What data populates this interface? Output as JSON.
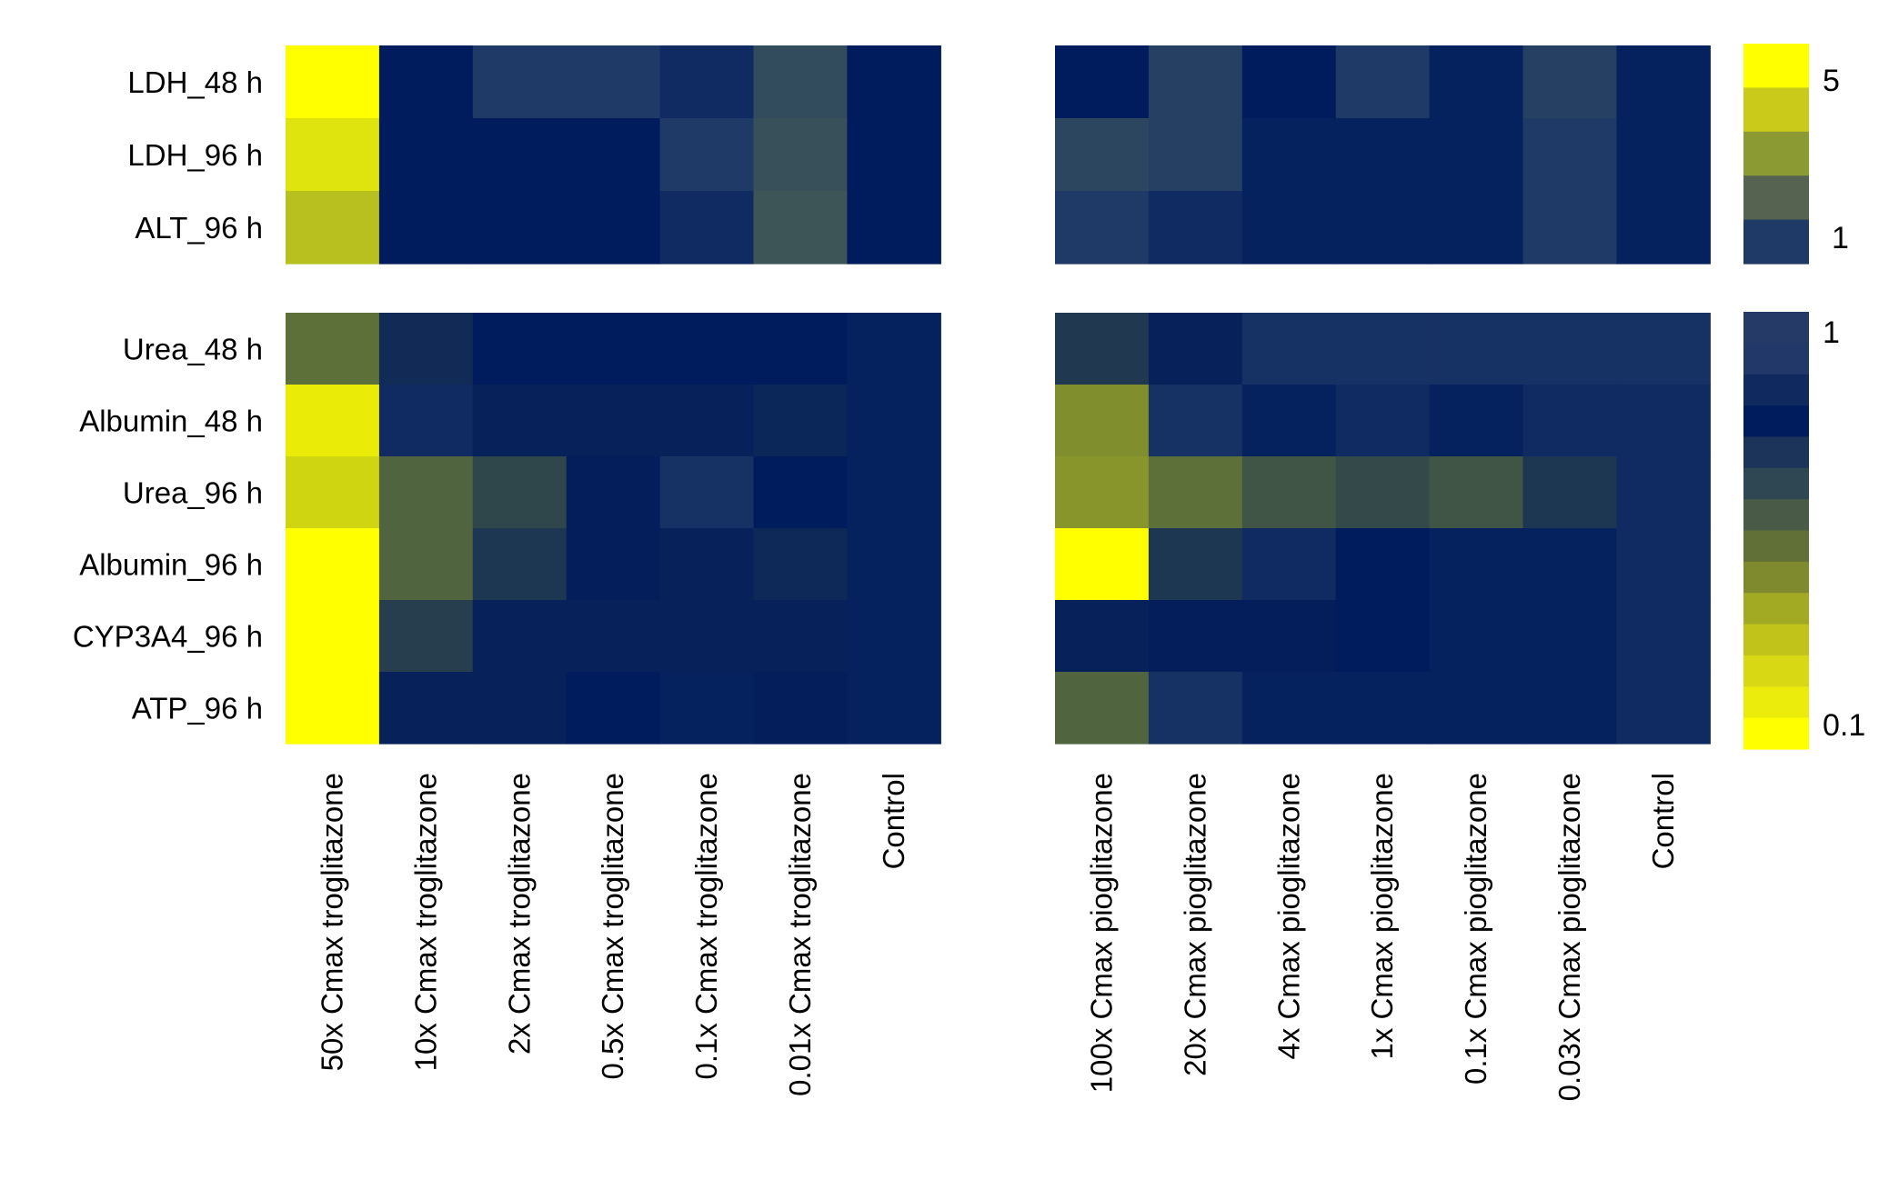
{
  "chart_data": {
    "type": "heatmap",
    "color_scale": {
      "low_color": "#ffff00",
      "mid_color": "#1f3a66",
      "high_color": "#001c5c"
    },
    "row_groups": [
      {
        "rows": [
          "LDH_48 h",
          "LDH_96 h",
          "ALT_96 h"
        ]
      },
      {
        "rows": [
          "Urea_48 h",
          "Albumin_48 h",
          "Urea_96 h",
          "Albumin_96 h",
          "CYP3A4_96 h",
          "ATP_96 h"
        ]
      }
    ],
    "col_groups": [
      {
        "columns": [
          "50x Cmax troglitazone",
          "10x Cmax troglitazone",
          "2x Cmax troglitazone",
          "0.5x Cmax troglitazone",
          "0.1x Cmax troglitazone",
          "0.01x Cmax troglitazone",
          "Control"
        ]
      },
      {
        "columns": [
          "100x Cmax pioglitazone",
          "20x Cmax pioglitazone",
          "4x Cmax pioglitazone",
          "1x Cmax pioglitazone",
          "0.1x Cmax pioglitazone",
          "0.03x Cmax pioglitazone",
          "Control"
        ]
      }
    ],
    "panels": [
      {
        "row_group": 0,
        "col_group": 0,
        "color_scale": "top",
        "values": [
          [
            5.5,
            0.9,
            1.0,
            1.0,
            0.95,
            1.15,
            0.9
          ],
          [
            4.0,
            0.9,
            0.9,
            0.9,
            1.0,
            1.2,
            0.9
          ],
          [
            3.0,
            0.9,
            0.9,
            0.9,
            0.95,
            1.25,
            0.9
          ]
        ]
      },
      {
        "row_group": 0,
        "col_group": 1,
        "color_scale": "top",
        "values": [
          [
            0.9,
            1.05,
            0.9,
            1.0,
            0.92,
            1.05,
            0.92
          ],
          [
            1.1,
            1.05,
            0.92,
            0.92,
            0.92,
            1.0,
            0.92
          ],
          [
            1.0,
            0.95,
            0.92,
            0.92,
            0.92,
            1.0,
            0.92
          ]
        ]
      },
      {
        "row_group": 1,
        "col_group": 0,
        "color_scale": "bottom",
        "values": [
          [
            0.4,
            0.78,
            0.9,
            0.9,
            0.9,
            0.9,
            0.92
          ],
          [
            0.12,
            0.95,
            0.85,
            0.85,
            0.85,
            0.82,
            0.92
          ],
          [
            0.15,
            0.45,
            0.6,
            0.88,
            0.97,
            0.9,
            0.92
          ],
          [
            0.1,
            0.45,
            0.7,
            0.88,
            0.85,
            0.8,
            0.92
          ],
          [
            0.1,
            0.65,
            0.85,
            0.85,
            0.85,
            0.85,
            0.92
          ],
          [
            0.1,
            0.85,
            0.85,
            0.9,
            0.92,
            0.88,
            0.92
          ]
        ]
      },
      {
        "row_group": 1,
        "col_group": 1,
        "color_scale": "bottom",
        "values": [
          [
            0.68,
            0.85,
            0.97,
            0.97,
            0.97,
            0.97,
            0.97
          ],
          [
            0.3,
            0.97,
            0.92,
            0.95,
            0.92,
            0.95,
            0.95
          ],
          [
            0.28,
            0.4,
            0.52,
            0.58,
            0.52,
            0.7,
            0.95
          ],
          [
            0.1,
            0.7,
            0.95,
            0.9,
            0.92,
            0.92,
            0.95
          ],
          [
            0.85,
            0.88,
            0.88,
            0.9,
            0.92,
            0.92,
            0.95
          ],
          [
            0.45,
            0.97,
            0.92,
            0.92,
            0.92,
            0.92,
            0.95
          ]
        ]
      }
    ],
    "legends": [
      {
        "id": "top",
        "tick_labels": [
          "5",
          "1"
        ],
        "swatches": [
          "#ffff00",
          "#c9ca1a",
          "#8b9a33",
          "#566350",
          "#1f3a66"
        ]
      },
      {
        "id": "bottom",
        "tick_labels": [
          "1",
          "0.1"
        ],
        "swatches": [
          "#253a66",
          "#223868",
          "#102a60",
          "#001c5c",
          "#1c3459",
          "#2e4752",
          "#495b47",
          "#617037",
          "#7f8a2e",
          "#a2a922",
          "#c1c31b",
          "#d8d814",
          "#ecec0c",
          "#ffff00"
        ]
      }
    ]
  }
}
